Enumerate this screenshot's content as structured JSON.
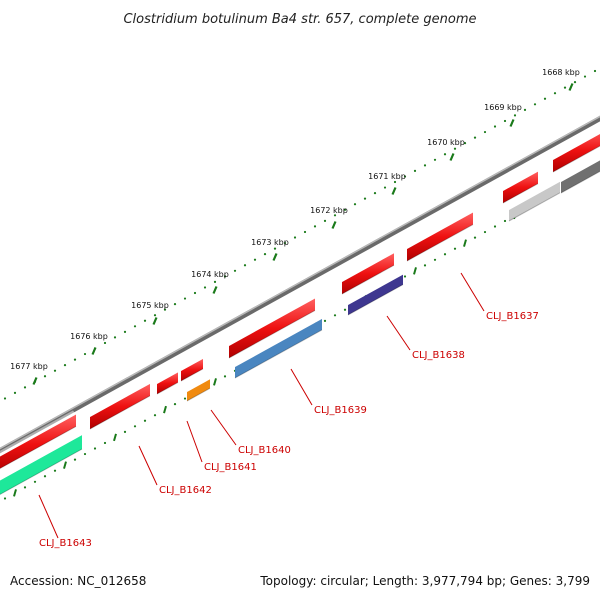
{
  "title": "Clostridium botulinum Ba4 str. 657, complete genome",
  "footer": {
    "accession": "Accession: NC_012658",
    "summary": "Topology: circular; Length: 3,977,794 bp; Genes: 3,799"
  },
  "ticks": [
    "1668 kbp",
    "1669 kbp",
    "1670 kbp",
    "1671 kbp",
    "1672 kbp",
    "1673 kbp",
    "1674 kbp",
    "1675 kbp",
    "1676 kbp",
    "1677 kbp"
  ],
  "gene_labels": [
    "CLJ_B1637",
    "CLJ_B1638",
    "CLJ_B1639",
    "CLJ_B1640",
    "CLJ_B1641",
    "CLJ_B1642",
    "CLJ_B1643"
  ],
  "colors": {
    "backbone": "#808080",
    "cds_forward": "#ee1111",
    "gene_b1643": "#1ee89a",
    "gene_b1639": "#4a86c0",
    "gene_b1638": "#3e3790",
    "gene_b1640": "#f08a10",
    "gene_grey_light": "#c8c8c8",
    "gene_grey_dark": "#707070",
    "tick": "#1a7a1a",
    "label": "#cc0000"
  }
}
